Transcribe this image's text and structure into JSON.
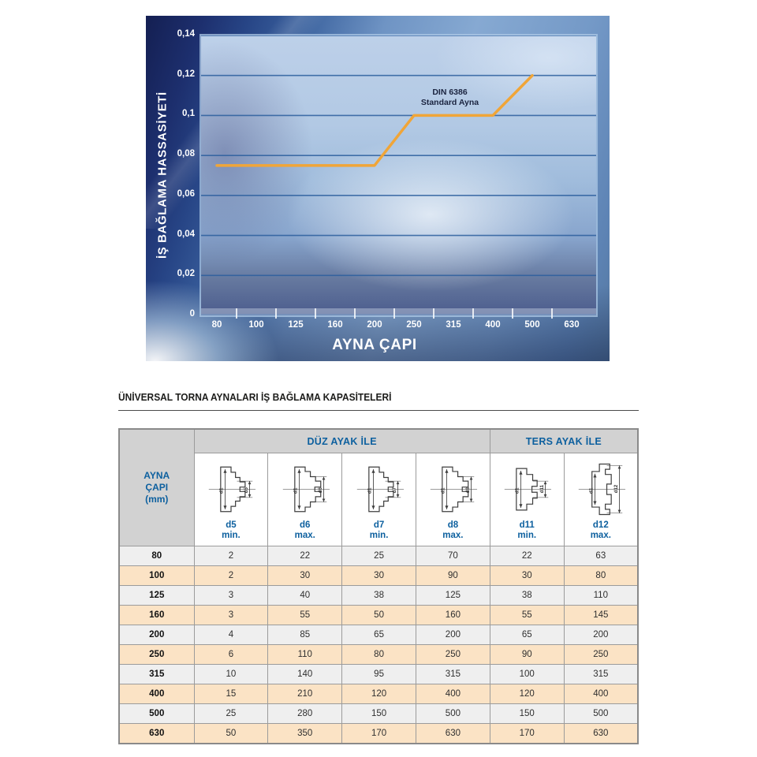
{
  "chart": {
    "y_axis_title": "İŞ BAĞLAMA HASSASİYETİ",
    "x_axis_title": "AYNA ÇAPI",
    "y_ticks": [
      "0,14",
      "0,12",
      "0,1",
      "0,08",
      "0,06",
      "0,04",
      "0,02",
      "0"
    ],
    "x_ticks": [
      "80",
      "100",
      "125",
      "160",
      "200",
      "250",
      "315",
      "400",
      "500",
      "630"
    ],
    "series_label": [
      "DIN 6386",
      "Standard Ayna"
    ],
    "line_color": "#f0a538"
  },
  "chart_data": {
    "type": "line",
    "title": "",
    "xlabel": "AYNA ÇAPI",
    "ylabel": "İŞ BAĞLAMA HASSASİYETİ",
    "categories": [
      80,
      100,
      125,
      160,
      200,
      250,
      315,
      400,
      500,
      630
    ],
    "series": [
      {
        "name": "DIN 6386 Standard Ayna",
        "x": [
          80,
          100,
          125,
          160,
          200,
          250,
          315,
          400,
          500
        ],
        "y": [
          0.075,
          0.075,
          0.075,
          0.075,
          0.075,
          0.1,
          0.1,
          0.1,
          0.12
        ]
      }
    ],
    "ylim": [
      0,
      0.14
    ],
    "grid": true,
    "legend_position": "annotation-above-line"
  },
  "section": {
    "title": "ÜNİVERSAL TORNA AYNALARI İŞ BAĞLAMA KAPASİTELERİ"
  },
  "table": {
    "row_header_lines": [
      "AYNA",
      "ÇAPI",
      "(mm)"
    ],
    "groups": [
      {
        "label": "DÜZ AYAK İLE",
        "span": 4
      },
      {
        "label": "TERS AYAK İLE",
        "span": 2
      }
    ],
    "columns": [
      {
        "dim": "d5",
        "limit": "min.",
        "icon": "chuck-flat-jaw-min-icon"
      },
      {
        "dim": "d6",
        "limit": "max.",
        "icon": "chuck-flat-jaw-max-icon"
      },
      {
        "dim": "d7",
        "limit": "min.",
        "icon": "chuck-flat-jaw-min-icon"
      },
      {
        "dim": "d8",
        "limit": "max.",
        "icon": "chuck-flat-jaw-max-icon"
      },
      {
        "dim": "d11",
        "limit": "min.",
        "icon": "chuck-reverse-jaw-min-icon"
      },
      {
        "dim": "d12",
        "limit": "max.",
        "icon": "chuck-reverse-jaw-max-icon"
      }
    ],
    "rows": [
      {
        "label": "80",
        "values": [
          "2",
          "22",
          "25",
          "70",
          "22",
          "63"
        ]
      },
      {
        "label": "100",
        "values": [
          "2",
          "30",
          "30",
          "90",
          "30",
          "80"
        ]
      },
      {
        "label": "125",
        "values": [
          "3",
          "40",
          "38",
          "125",
          "38",
          "110"
        ]
      },
      {
        "label": "160",
        "values": [
          "3",
          "55",
          "50",
          "160",
          "55",
          "145"
        ]
      },
      {
        "label": "200",
        "values": [
          "4",
          "85",
          "65",
          "200",
          "65",
          "200"
        ]
      },
      {
        "label": "250",
        "values": [
          "6",
          "110",
          "80",
          "250",
          "90",
          "250"
        ]
      },
      {
        "label": "315",
        "values": [
          "10",
          "140",
          "95",
          "315",
          "100",
          "315"
        ]
      },
      {
        "label": "400",
        "values": [
          "15",
          "210",
          "120",
          "400",
          "120",
          "400"
        ]
      },
      {
        "label": "500",
        "values": [
          "25",
          "280",
          "150",
          "500",
          "150",
          "500"
        ]
      },
      {
        "label": "630",
        "values": [
          "50",
          "350",
          "170",
          "630",
          "170",
          "630"
        ]
      }
    ]
  },
  "colors": {
    "accent_orange": "#f0a538",
    "header_blue": "#0d609f",
    "row_peach": "#fbe3c5",
    "row_gray": "#efefef",
    "header_gray": "#d2d2d2",
    "chart_navy": "#1d2f6e",
    "gridline_blue": "#2c5f9e"
  }
}
